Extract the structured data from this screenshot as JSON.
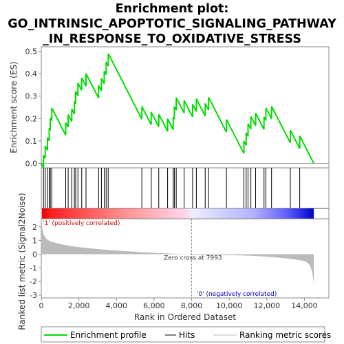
{
  "chart_data": {
    "type": "line",
    "title_lines": [
      "Enrichment plot:",
      "GO_INTRINSIC_APOPTOTIC_SIGNALING_PATHWAY",
      "_IN_RESPONSE_TO_OXIDATIVE_STRESS"
    ],
    "ylabel_top": "Enrichment score (ES)",
    "ylabel_bottom": "Ranked list metric (Signal2Noise)",
    "xlabel": "Rank in Ordered Dataset",
    "xlim": [
      0,
      15300
    ],
    "x_ticks": [
      0,
      2000,
      4000,
      6000,
      8000,
      10000,
      12000,
      14000
    ],
    "x_tick_labels": [
      "0",
      "2,000",
      "4,000",
      "6,000",
      "8,000",
      "10,000",
      "12,000",
      "14,000"
    ],
    "es_ylim": [
      -0.02,
      0.52
    ],
    "es_ticks": [
      0.0,
      0.1,
      0.2,
      0.3,
      0.4,
      0.5
    ],
    "es_tick_labels": [
      "0.0",
      "0.1",
      "0.2",
      "0.3",
      "0.4",
      "0.5"
    ],
    "metric_ylim": [
      -3.2,
      2.6
    ],
    "metric_ticks": [
      2,
      1,
      0,
      -1,
      -2,
      -3
    ],
    "metric_tick_labels": [
      "2",
      "1",
      "0",
      "-1",
      "-2",
      "-3"
    ],
    "total_genes": 14500,
    "hits": [
      120,
      210,
      330,
      420,
      480,
      560,
      1300,
      1430,
      1620,
      1760,
      1830,
      1950,
      2150,
      2380,
      3050,
      3200,
      3350,
      3450,
      3560,
      5350,
      5850,
      6250,
      6720,
      7020,
      7080,
      7180,
      7600,
      8050,
      8250,
      8720,
      8900,
      9850,
      10780,
      10900,
      11000,
      11150,
      11400,
      11850,
      11950,
      12250,
      13250,
      13750
    ],
    "es_peak_rank": 3560,
    "es_peak_value": 0.49,
    "es_end_value": 0.0,
    "metric_start": 2.6,
    "metric_end": -2.9,
    "zero_cross_rank": 7993,
    "zero_cross_label": "Zero cross at 7993",
    "pos_label": "'1' (positively correlated)",
    "neg_label": "'0' (negatively correlated)",
    "legend": [
      {
        "label": "Enrichment profile",
        "kind": "enrichment",
        "color": "#00dd00"
      },
      {
        "label": "Hits",
        "kind": "hits",
        "color": "#000000"
      },
      {
        "label": "Ranking metric scores",
        "kind": "metric",
        "color": "#bbbbbb"
      }
    ],
    "colors": {
      "enrichment": "#00dd00",
      "hits": "#000000",
      "metric": "#bbbbbb",
      "positive": "#ff0000",
      "negative": "#0000ff",
      "pos_label": "#cc0000",
      "neg_label": "#0000cc",
      "zero_line": "#888888"
    }
  }
}
